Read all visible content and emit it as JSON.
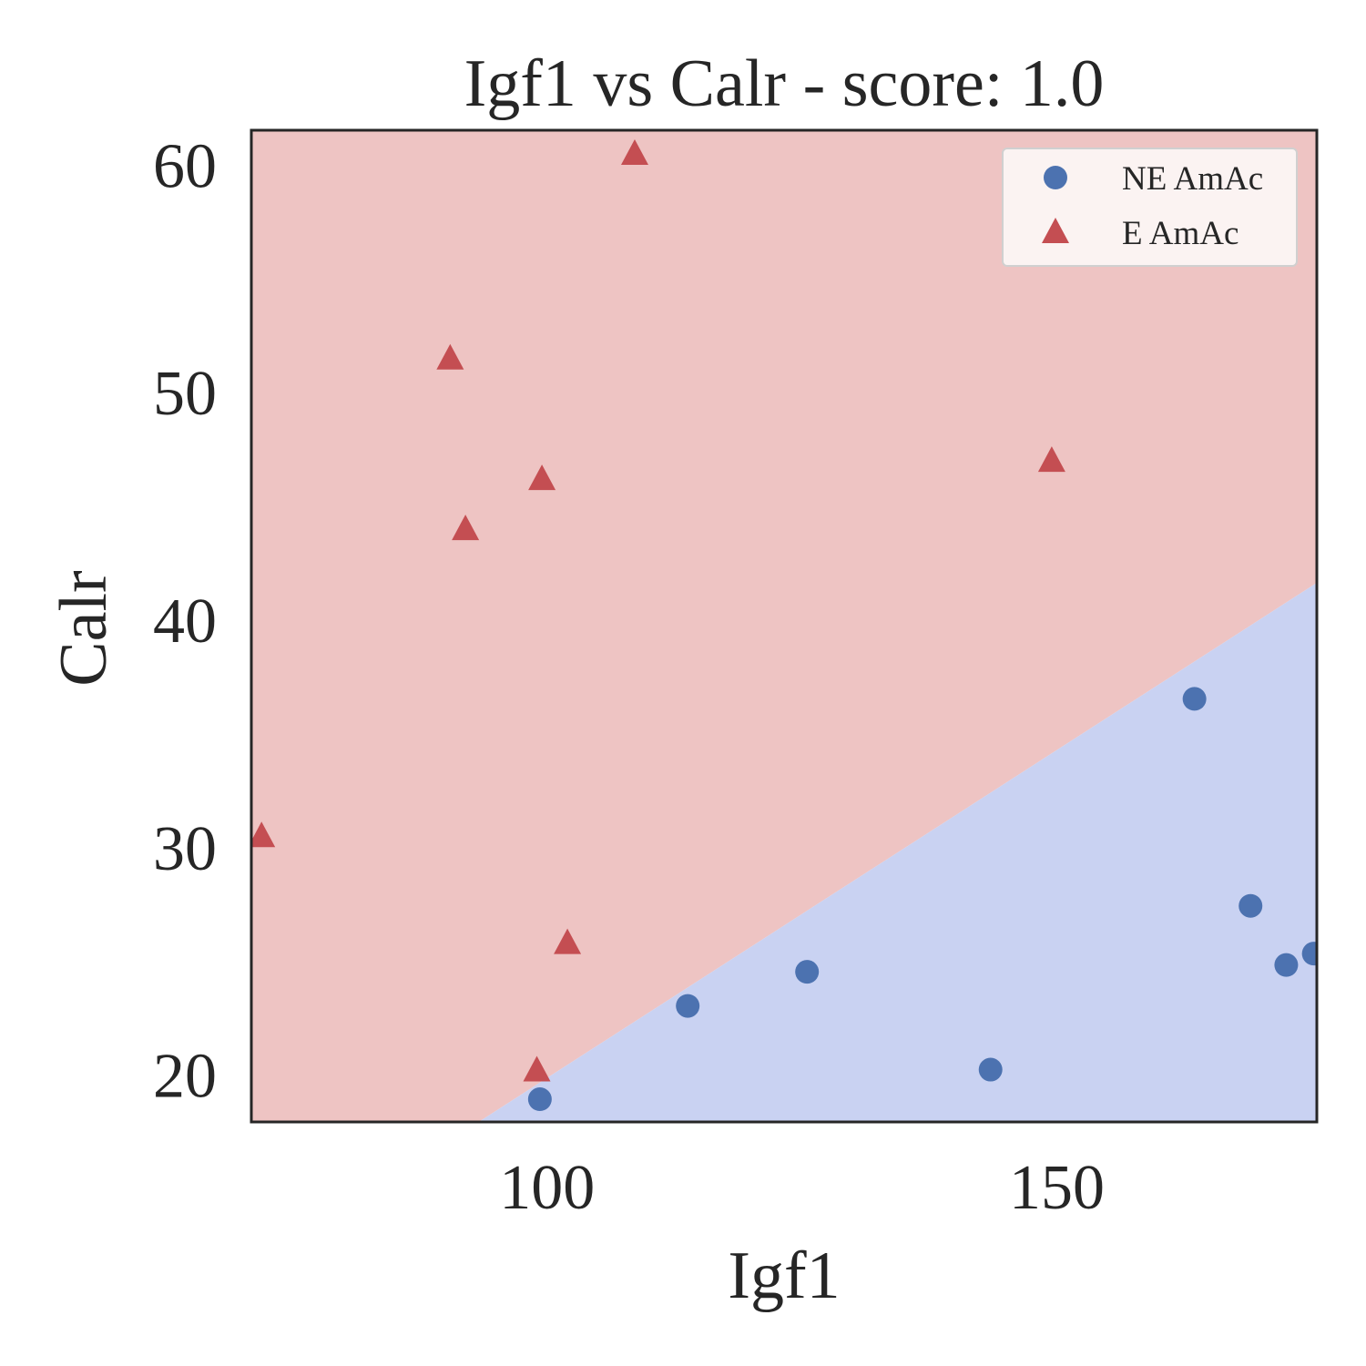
{
  "chart_data": {
    "type": "scatter",
    "title": "Igf1 vs Calr - score: 1.0",
    "xlabel": "Igf1",
    "ylabel": "Calr",
    "xlim": [
      71,
      175.5
    ],
    "ylim": [
      17.9,
      61.5
    ],
    "xticks": [
      100,
      150
    ],
    "yticks": [
      20,
      30,
      40,
      50,
      60
    ],
    "grid": false,
    "legend_position": "top-right",
    "decision_boundary": [
      [
        93.3,
        17.9
      ],
      [
        175.5,
        41.6
      ]
    ],
    "regions": [
      {
        "class": "E AmAc",
        "side": "above",
        "color": "#eec4c3"
      },
      {
        "class": "NE AmAc",
        "side": "below",
        "color": "#c9d2f2"
      }
    ],
    "series": [
      {
        "name": "NE AmAc",
        "marker": "circle",
        "color": "#4c72b0",
        "points": [
          [
            99.3,
            18.9
          ],
          [
            113.8,
            23.0
          ],
          [
            125.5,
            24.5
          ],
          [
            143.5,
            20.2
          ],
          [
            163.5,
            36.5
          ],
          [
            169.0,
            27.4
          ],
          [
            172.5,
            24.8
          ],
          [
            175.2,
            25.3
          ]
        ]
      },
      {
        "name": "E AmAc",
        "marker": "triangle",
        "color": "#c44e52",
        "points": [
          [
            72.0,
            30.5
          ],
          [
            90.5,
            51.5
          ],
          [
            92.0,
            44.0
          ],
          [
            99.0,
            20.2
          ],
          [
            99.5,
            46.2
          ],
          [
            102.0,
            25.8
          ],
          [
            108.6,
            60.5
          ],
          [
            149.5,
            47.0
          ]
        ]
      }
    ]
  }
}
